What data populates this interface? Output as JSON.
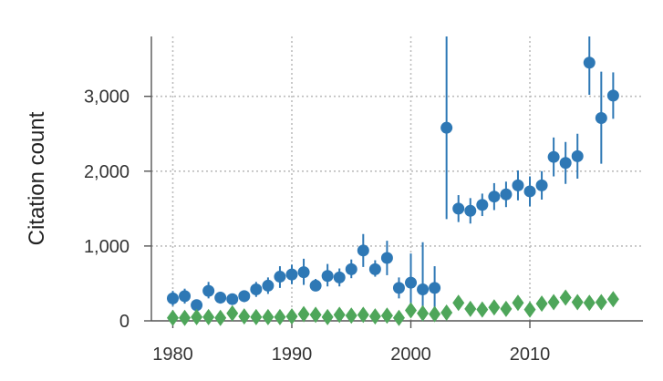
{
  "chart_data": {
    "type": "scatter",
    "title": "",
    "xlabel": "",
    "ylabel": "Citation count",
    "xlim": [
      1978.2,
      2019.5
    ],
    "ylim": [
      0,
      3800
    ],
    "xticks": [
      1980,
      1990,
      2000,
      2010
    ],
    "xtick_labels": [
      "1980",
      "1990",
      "2000",
      "2010"
    ],
    "yticks": [
      0,
      1000,
      2000,
      3000
    ],
    "ytick_labels": [
      "0",
      "1,000",
      "2,000",
      "3,000"
    ],
    "grid": true,
    "legend": "none",
    "series": [
      {
        "marker": "circle",
        "color": "#2e78b5",
        "points": [
          {
            "x": 1980,
            "y": 300,
            "low": 200,
            "high": 400
          },
          {
            "x": 1981,
            "y": 330,
            "low": 230,
            "high": 430
          },
          {
            "x": 1982,
            "y": 210,
            "low": 150,
            "high": 270
          },
          {
            "x": 1983,
            "y": 400,
            "low": 300,
            "high": 520
          },
          {
            "x": 1984,
            "y": 310,
            "low": 230,
            "high": 390
          },
          {
            "x": 1985,
            "y": 290,
            "low": 220,
            "high": 360
          },
          {
            "x": 1986,
            "y": 330,
            "low": 250,
            "high": 400
          },
          {
            "x": 1987,
            "y": 420,
            "low": 320,
            "high": 520
          },
          {
            "x": 1988,
            "y": 470,
            "low": 360,
            "high": 580
          },
          {
            "x": 1989,
            "y": 590,
            "low": 440,
            "high": 730
          },
          {
            "x": 1990,
            "y": 620,
            "low": 490,
            "high": 750
          },
          {
            "x": 1991,
            "y": 650,
            "low": 480,
            "high": 830
          },
          {
            "x": 1992,
            "y": 470,
            "low": 400,
            "high": 560
          },
          {
            "x": 1993,
            "y": 600,
            "low": 460,
            "high": 760
          },
          {
            "x": 1994,
            "y": 580,
            "low": 460,
            "high": 700
          },
          {
            "x": 1995,
            "y": 690,
            "low": 570,
            "high": 820
          },
          {
            "x": 1996,
            "y": 940,
            "low": 720,
            "high": 1160
          },
          {
            "x": 1997,
            "y": 690,
            "low": 590,
            "high": 810
          },
          {
            "x": 1998,
            "y": 840,
            "low": 610,
            "high": 1070
          },
          {
            "x": 1999,
            "y": 440,
            "low": 300,
            "high": 580
          },
          {
            "x": 2000,
            "y": 510,
            "low": 100,
            "high": 900
          },
          {
            "x": 2001,
            "y": 420,
            "low": 0,
            "high": 1050
          },
          {
            "x": 2002,
            "y": 440,
            "low": 150,
            "high": 730
          },
          {
            "x": 2003,
            "y": 2580,
            "low": 1360,
            "high": 3800
          },
          {
            "x": 2004,
            "y": 1500,
            "low": 1320,
            "high": 1680
          },
          {
            "x": 2005,
            "y": 1470,
            "low": 1300,
            "high": 1640
          },
          {
            "x": 2006,
            "y": 1550,
            "low": 1400,
            "high": 1700
          },
          {
            "x": 2007,
            "y": 1660,
            "low": 1480,
            "high": 1840
          },
          {
            "x": 2008,
            "y": 1690,
            "low": 1520,
            "high": 1860
          },
          {
            "x": 2009,
            "y": 1810,
            "low": 1610,
            "high": 2010
          },
          {
            "x": 2010,
            "y": 1730,
            "low": 1530,
            "high": 1930
          },
          {
            "x": 2011,
            "y": 1810,
            "low": 1620,
            "high": 2000
          },
          {
            "x": 2012,
            "y": 2190,
            "low": 1930,
            "high": 2450
          },
          {
            "x": 2013,
            "y": 2110,
            "low": 1830,
            "high": 2390
          },
          {
            "x": 2014,
            "y": 2200,
            "low": 1900,
            "high": 2500
          },
          {
            "x": 2015,
            "y": 3450,
            "low": 3020,
            "high": 3800
          },
          {
            "x": 2016,
            "y": 2710,
            "low": 2100,
            "high": 3330
          },
          {
            "x": 2017,
            "y": 3010,
            "low": 2700,
            "high": 3320
          }
        ]
      },
      {
        "marker": "diamond",
        "color": "#4ea65a",
        "points": [
          {
            "x": 1980,
            "y": 40
          },
          {
            "x": 1981,
            "y": 40
          },
          {
            "x": 1982,
            "y": 50
          },
          {
            "x": 1983,
            "y": 50
          },
          {
            "x": 1984,
            "y": 40
          },
          {
            "x": 1985,
            "y": 100
          },
          {
            "x": 1986,
            "y": 60
          },
          {
            "x": 1987,
            "y": 50
          },
          {
            "x": 1988,
            "y": 50
          },
          {
            "x": 1989,
            "y": 50
          },
          {
            "x": 1990,
            "y": 60
          },
          {
            "x": 1991,
            "y": 90
          },
          {
            "x": 1992,
            "y": 80
          },
          {
            "x": 1993,
            "y": 50
          },
          {
            "x": 1994,
            "y": 80
          },
          {
            "x": 1995,
            "y": 70
          },
          {
            "x": 1996,
            "y": 80
          },
          {
            "x": 1997,
            "y": 60
          },
          {
            "x": 1998,
            "y": 70
          },
          {
            "x": 1999,
            "y": 40
          },
          {
            "x": 2000,
            "y": 140
          },
          {
            "x": 2001,
            "y": 100
          },
          {
            "x": 2002,
            "y": 90
          },
          {
            "x": 2003,
            "y": 110
          },
          {
            "x": 2004,
            "y": 240
          },
          {
            "x": 2005,
            "y": 160
          },
          {
            "x": 2006,
            "y": 150
          },
          {
            "x": 2007,
            "y": 180
          },
          {
            "x": 2008,
            "y": 160
          },
          {
            "x": 2009,
            "y": 240
          },
          {
            "x": 2010,
            "y": 150
          },
          {
            "x": 2011,
            "y": 230
          },
          {
            "x": 2012,
            "y": 250
          },
          {
            "x": 2013,
            "y": 310
          },
          {
            "x": 2014,
            "y": 250
          },
          {
            "x": 2015,
            "y": 240
          },
          {
            "x": 2016,
            "y": 250
          },
          {
            "x": 2017,
            "y": 290
          }
        ]
      }
    ]
  }
}
